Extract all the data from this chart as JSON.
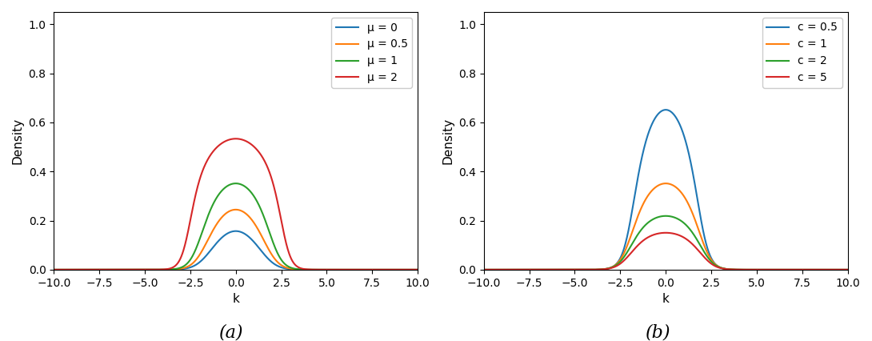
{
  "T": 1.0,
  "k_min": -10.0,
  "k_max": 10.0,
  "N_k": 1000,
  "panel_a": {
    "c": 1.0,
    "mu_values": [
      0,
      0.5,
      1,
      2
    ],
    "mu_labels": [
      "μ = 0",
      "μ = 0.5",
      "μ = 1",
      "μ = 2"
    ],
    "colors": [
      "#1f77b4",
      "#ff7f0e",
      "#2ca02c",
      "#d62728"
    ]
  },
  "panel_b": {
    "mu": 1.0,
    "c_values": [
      0.5,
      1,
      2,
      5
    ],
    "c_labels": [
      "c = 0.5",
      "c = 1",
      "c = 2",
      "c = 5"
    ],
    "colors": [
      "#1f77b4",
      "#ff7f0e",
      "#2ca02c",
      "#d62728"
    ]
  },
  "xlabel": "k",
  "ylabel": "Density",
  "xlim": [
    -10.0,
    10.0
  ],
  "ylim": [
    0.0,
    1.05
  ],
  "label_a": "(a)",
  "label_b": "(b)",
  "legend_fontsize": 10,
  "axis_fontsize": 11,
  "figsize": [
    10.9,
    4.26
  ],
  "dpi": 100
}
